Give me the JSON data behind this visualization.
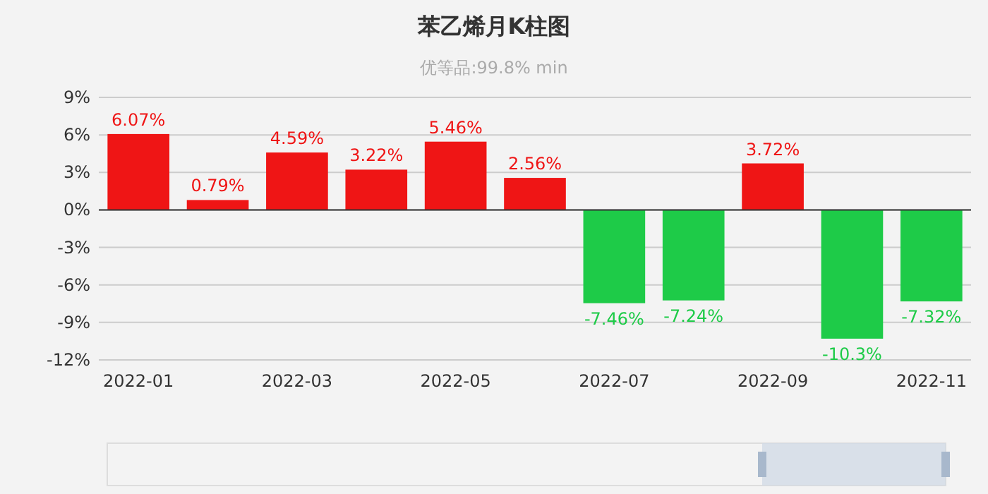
{
  "chart_data": {
    "type": "bar",
    "title": "苯乙烯月K柱图",
    "subtitle": "优等品:99.8% min",
    "categories": [
      "2022-01",
      null,
      "2022-03",
      null,
      "2022-05",
      null,
      "2022-07",
      null,
      "2022-09",
      null,
      "2022-11"
    ],
    "values": [
      6.07,
      0.79,
      4.59,
      3.22,
      5.46,
      2.56,
      -7.46,
      -7.24,
      3.72,
      -10.3,
      -7.32
    ],
    "colors": [
      "#ef1515",
      "#ef1515",
      "#ef1515",
      "#ef1515",
      "#ef1515",
      "#ef1515",
      "#1ecb48",
      "#1ecb48",
      "#ef1515",
      "#1ecb48",
      "#1ecb48"
    ],
    "value_labels": [
      "6.07%",
      "0.79%",
      "4.59%",
      "3.22%",
      "5.46%",
      "2.56%",
      "-7.46%",
      "-7.24%",
      "3.72%",
      "-10.3%",
      "-7.32%"
    ],
    "ylim": [
      -12,
      9
    ],
    "yticks": [
      {
        "value": -12,
        "label": "-12%"
      },
      {
        "value": -9,
        "label": "-9%"
      },
      {
        "value": -6,
        "label": "-6%"
      },
      {
        "value": -3,
        "label": "-3%"
      },
      {
        "value": 0,
        "label": "0%"
      },
      {
        "value": 3,
        "label": "3%"
      },
      {
        "value": 6,
        "label": "6%"
      },
      {
        "value": 9,
        "label": "9%"
      }
    ],
    "grid": "y"
  }
}
